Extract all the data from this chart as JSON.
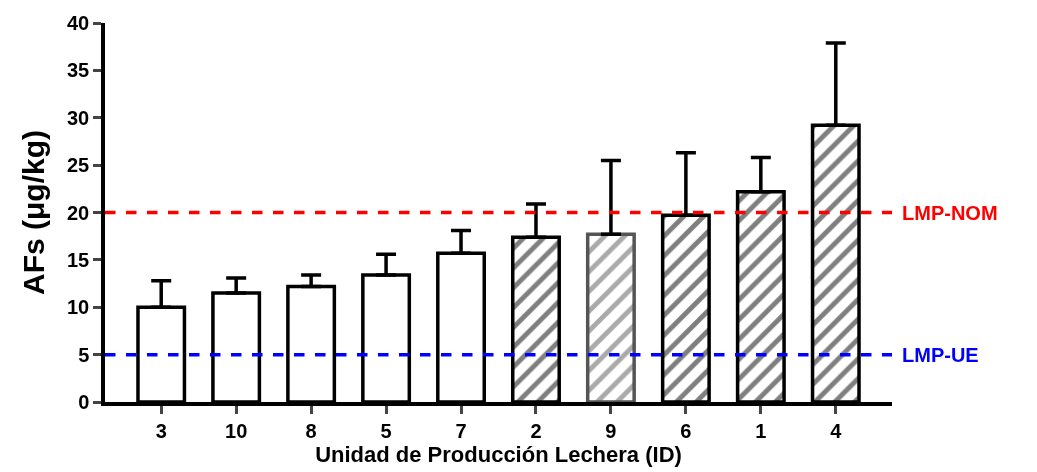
{
  "chart_data": {
    "type": "bar",
    "categories": [
      "3",
      "10",
      "8",
      "5",
      "7",
      "2",
      "9",
      "6",
      "1",
      "4"
    ],
    "values": [
      10.0,
      11.5,
      12.2,
      13.4,
      15.7,
      17.4,
      17.7,
      19.7,
      22.2,
      29.2
    ],
    "errors": [
      [
        10.0,
        12.8
      ],
      [
        11.5,
        13.1
      ],
      [
        12.2,
        13.4
      ],
      [
        13.4,
        15.6
      ],
      [
        15.7,
        18.1
      ],
      [
        17.4,
        20.9
      ],
      [
        17.7,
        25.5
      ],
      [
        19.7,
        26.3
      ],
      [
        22.2,
        25.8
      ],
      [
        29.2,
        37.9
      ]
    ],
    "colors": [
      "#ffffff",
      "#ffffff",
      "#ffffff",
      "#ffffff",
      "#ffffff",
      "#000000",
      "#555555",
      "#000000",
      "#000000",
      "#000000"
    ],
    "xlabel": "Unidad de Producción Lechera (ID)",
    "ylabel": "AFs (μg/kg)",
    "ylim": [
      0,
      40
    ],
    "yticks": [
      0,
      5,
      10,
      15,
      20,
      25,
      30,
      35,
      40
    ],
    "ref_lines": [
      {
        "axis": "y",
        "value": 20,
        "label": "LMP-NOM",
        "color": "#ff0000",
        "line_style": "dashed"
      },
      {
        "axis": "y",
        "value": 5,
        "label": "LMP-UE",
        "color": "#0000ff",
        "line_style": "dashed"
      }
    ]
  }
}
